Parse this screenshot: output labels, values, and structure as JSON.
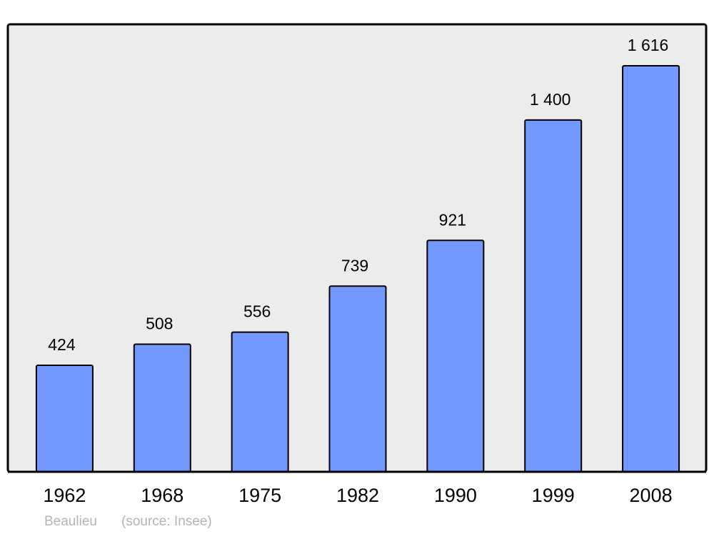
{
  "chart_data": {
    "type": "bar",
    "categories": [
      "1962",
      "1968",
      "1975",
      "1982",
      "1990",
      "1999",
      "2008"
    ],
    "values": [
      424,
      508,
      556,
      739,
      921,
      1400,
      1616
    ],
    "value_labels": [
      "424",
      "508",
      "556",
      "739",
      "921",
      "1 400",
      "1 616"
    ],
    "color": "#7399ff",
    "footer": {
      "place": "Beaulieu",
      "source": "(source: Insee)"
    }
  }
}
